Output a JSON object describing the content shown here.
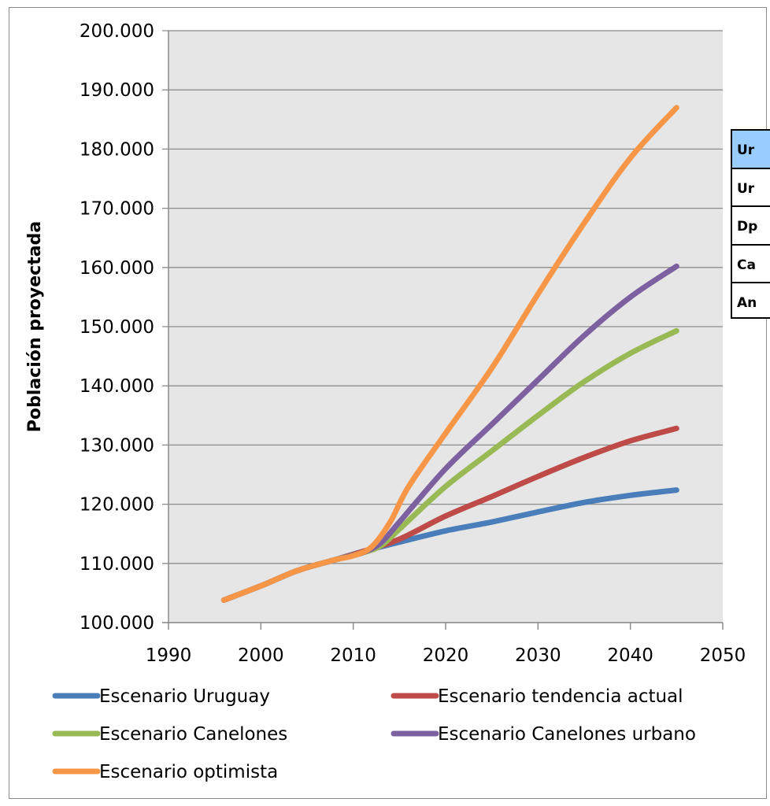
{
  "chart_data": {
    "type": "line",
    "title": "",
    "xlabel": "",
    "ylabel": "Población proyectada",
    "xlim": [
      1990,
      2050
    ],
    "ylim": [
      100000,
      200000
    ],
    "x_ticks": [
      "1990",
      "2000",
      "2010",
      "2020",
      "2030",
      "2040",
      "2050"
    ],
    "y_ticks": [
      "100.000",
      "110.000",
      "120.000",
      "130.000",
      "140.000",
      "150.000",
      "160.000",
      "170.000",
      "180.000",
      "190.000",
      "200.000"
    ],
    "grid": "horizontal",
    "legend_position": "bottom",
    "series": [
      {
        "name": "Escenario Uruguay",
        "color": "#4a7ebb",
        "x": [
          1996,
          2000,
          2004,
          2008,
          2011,
          2015,
          2020,
          2025,
          2030,
          2035,
          2040,
          2045
        ],
        "values": [
          103800,
          106200,
          108800,
          110600,
          112000,
          113600,
          115500,
          117000,
          118700,
          120300,
          121500,
          122400
        ]
      },
      {
        "name": "Escenario tendencia actual",
        "color": "#be4b48",
        "x": [
          1996,
          2000,
          2004,
          2008,
          2011,
          2015,
          2020,
          2025,
          2030,
          2035,
          2040,
          2045
        ],
        "values": [
          103800,
          106200,
          108800,
          110600,
          112000,
          114100,
          118000,
          121300,
          124700,
          127900,
          130700,
          132800
        ]
      },
      {
        "name": "Escenario Canelones",
        "color": "#98b954",
        "x": [
          1996,
          2000,
          2004,
          2008,
          2011,
          2013,
          2015,
          2020,
          2025,
          2030,
          2035,
          2040,
          2045
        ],
        "values": [
          103800,
          106200,
          108800,
          110600,
          111800,
          113000,
          115800,
          123000,
          129000,
          135000,
          140700,
          145500,
          149300
        ]
      },
      {
        "name": "Escenario Canelones urbano",
        "color": "#7d60a0",
        "x": [
          1996,
          2000,
          2004,
          2008,
          2011,
          2013,
          2015,
          2020,
          2025,
          2030,
          2035,
          2040,
          2045
        ],
        "values": [
          103800,
          106200,
          108800,
          110600,
          111800,
          113500,
          117000,
          126000,
          133500,
          141000,
          148500,
          155000,
          160200
        ]
      },
      {
        "name": "Escenario optimista",
        "color": "#f79646",
        "x": [
          1996,
          2000,
          2004,
          2008,
          2010,
          2012,
          2014,
          2016,
          2020,
          2025,
          2030,
          2035,
          2040,
          2045
        ],
        "values": [
          103800,
          106200,
          108800,
          110600,
          111300,
          112800,
          117000,
          123000,
          132000,
          143000,
          155500,
          167500,
          178500,
          187000
        ]
      }
    ]
  },
  "table": {
    "header_color": "#99ccff",
    "rows": [
      "Ur",
      "Ur",
      "Dp",
      "Ca",
      "An"
    ]
  }
}
